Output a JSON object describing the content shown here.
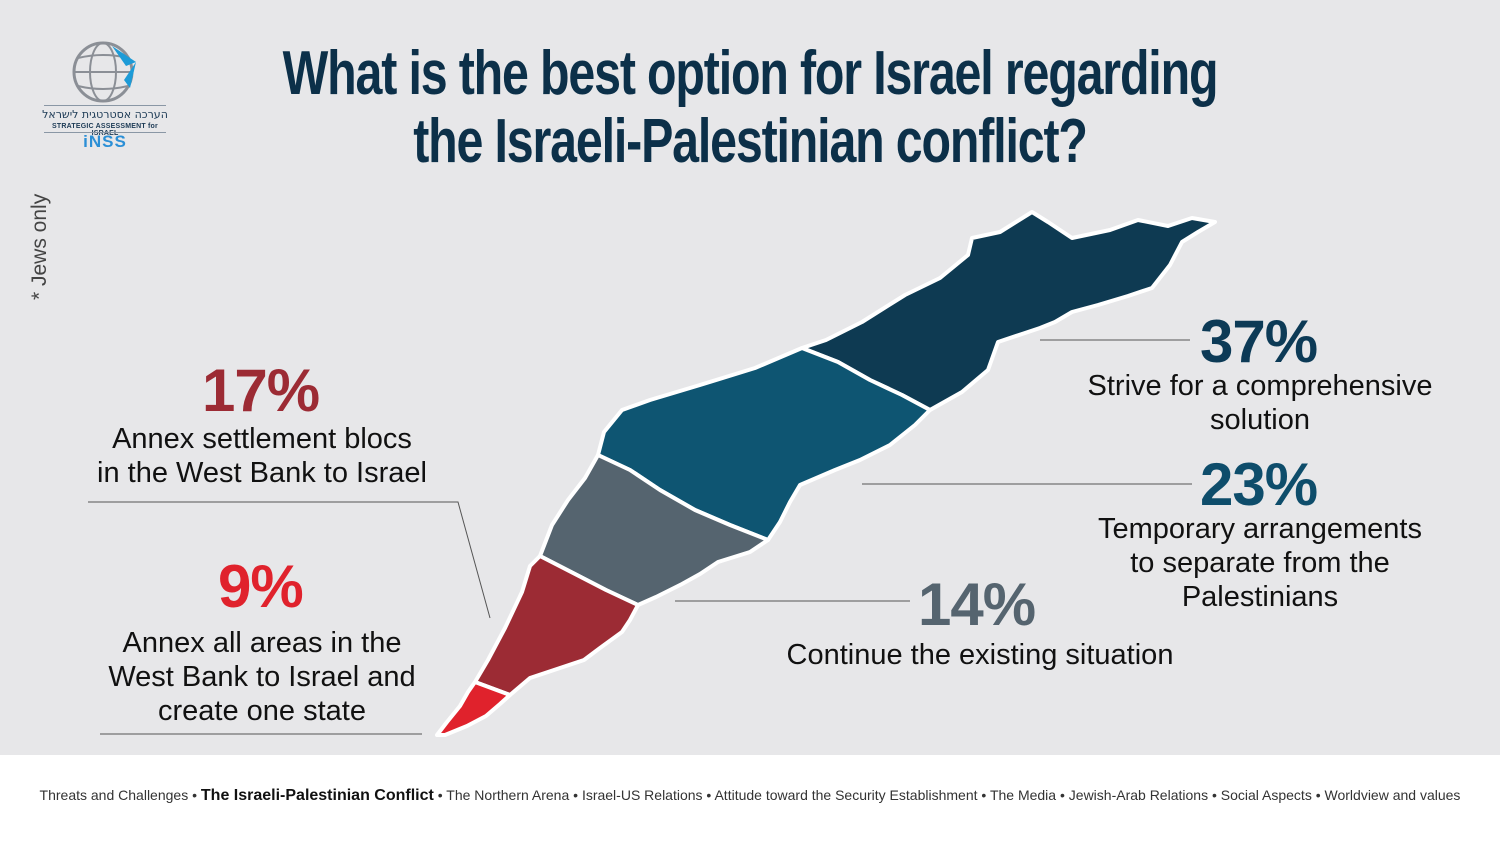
{
  "logo": {
    "hebrew": "הערכה אסטרטגית לישראל",
    "english": "STRATEGIC ASSESSMENT for ISRAEL",
    "brand": "iNSS",
    "icon": "globe-icon"
  },
  "title_line1": "What is the best option for Israel regarding",
  "title_line2": "the Israeli-Palestinian conflict?",
  "note": "* Jews only",
  "chart_data": {
    "type": "pie",
    "series": [
      {
        "name": "Strive for a comprehensive solution",
        "value": 37,
        "label": "37%",
        "color": "#0e3a52",
        "label_lines": [
          "Strive for a comprehensive",
          "solution"
        ]
      },
      {
        "name": "Temporary arrangements to separate from the Palestinians",
        "value": 23,
        "label": "23%",
        "color": "#0e5572",
        "label_lines": [
          "Temporary arrangements",
          "to separate from the",
          "Palestinians"
        ]
      },
      {
        "name": "Continue the existing situation",
        "value": 14,
        "label": "14%",
        "color": "#55646f",
        "label_lines": [
          "Continue the existing situation"
        ]
      },
      {
        "name": "Annex settlement blocs in the West Bank to Israel",
        "value": 17,
        "label": "17%",
        "color": "#9c2b34",
        "label_lines": [
          "Annex settlement blocs",
          "in the West Bank to Israel"
        ]
      },
      {
        "name": "Annex all areas in the West Bank to Israel and create one state",
        "value": 9,
        "label": "9%",
        "color": "#e0222c",
        "label_lines": [
          "Annex all areas in the",
          "West Bank to Israel and",
          "create one state"
        ]
      }
    ]
  },
  "footer": {
    "items": [
      {
        "label": "Threats and Challenges",
        "active": false
      },
      {
        "label": "The Israeli-Palestinian Conflict",
        "active": true
      },
      {
        "label": "The Northern  Arena",
        "active": false
      },
      {
        "label": "Israel-US Relations",
        "active": false
      },
      {
        "label": "Attitude toward the Security Establishment",
        "active": false
      },
      {
        "label": "The Media",
        "active": false
      },
      {
        "label": "Jewish-Arab Relations",
        "active": false
      },
      {
        "label": "Social Aspects",
        "active": false
      },
      {
        "label": "Worldview and values",
        "active": false
      }
    ],
    "separator": "•"
  }
}
